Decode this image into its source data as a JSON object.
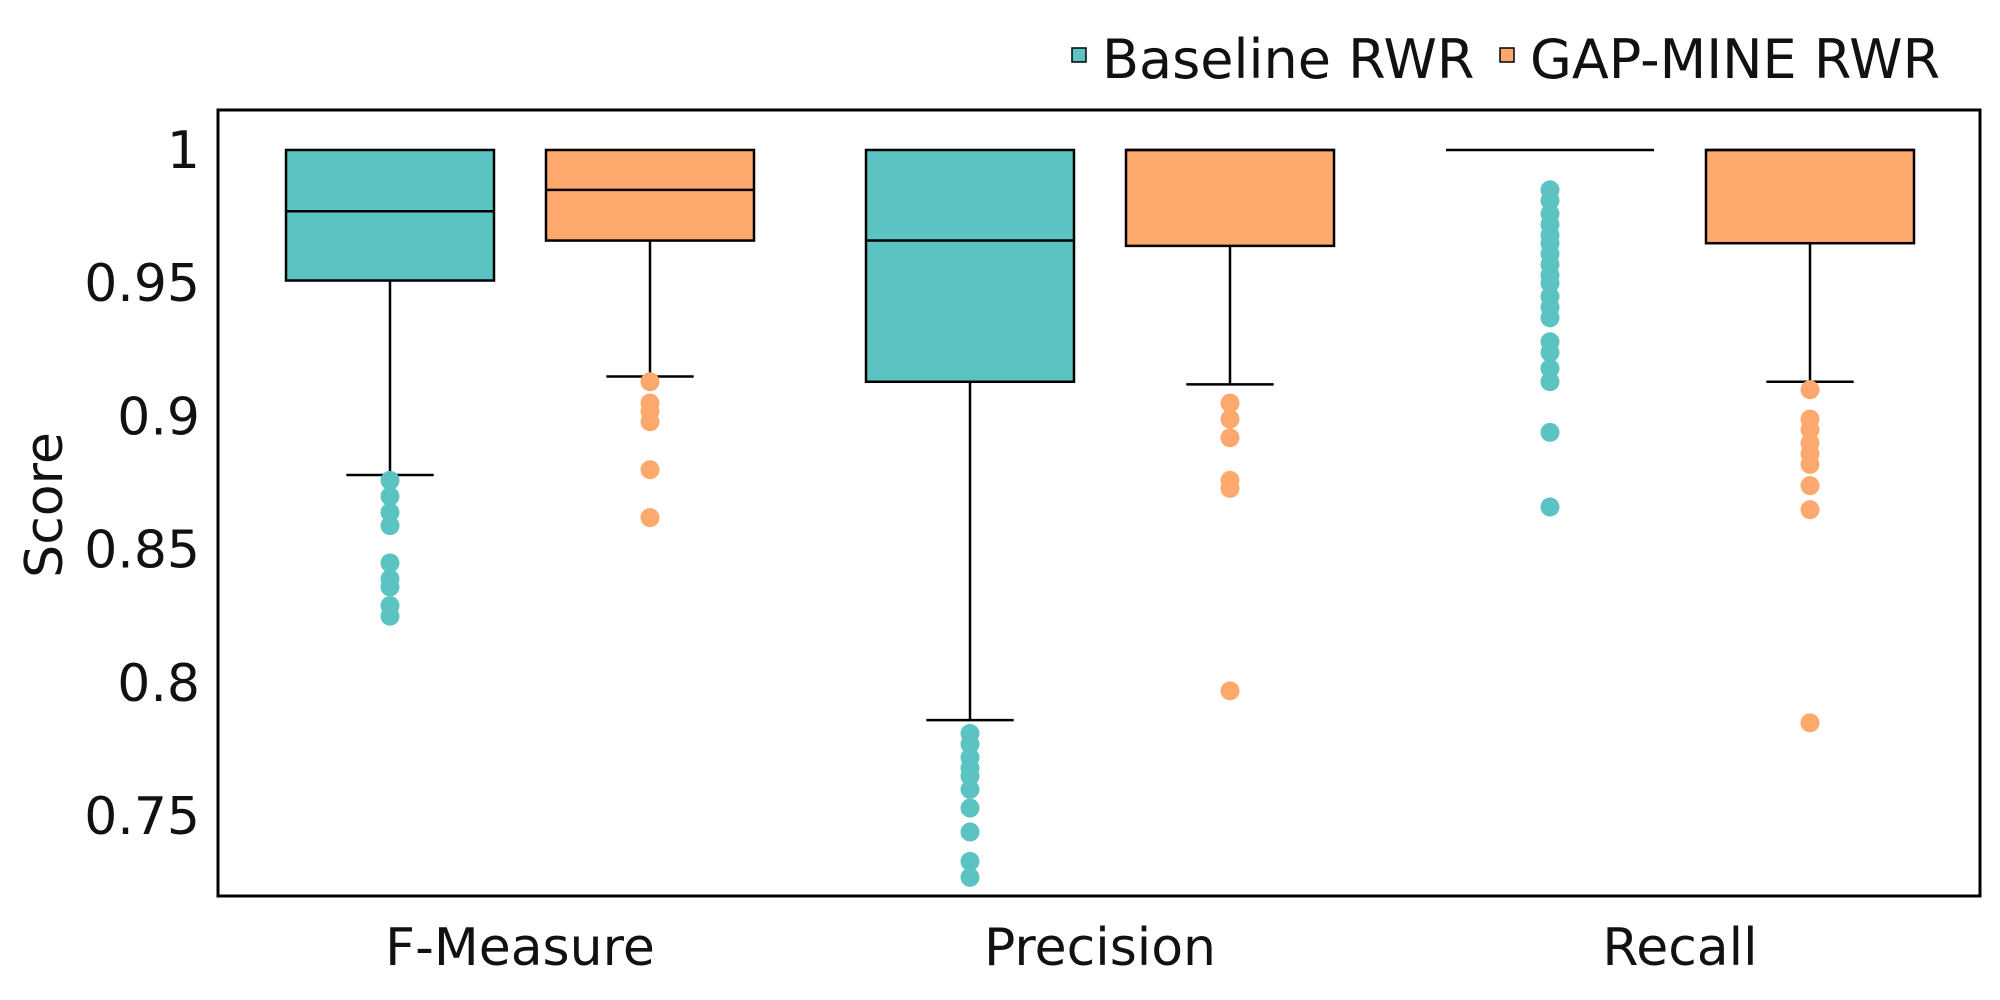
{
  "chart_data": {
    "type": "box",
    "title": "",
    "xlabel": "",
    "ylabel": "Score",
    "ylim": [
      0.72,
      1.015
    ],
    "y_ticks": [
      {
        "value": 1,
        "label": "1"
      },
      {
        "value": 0.95,
        "label": "0.95"
      },
      {
        "value": 0.9,
        "label": "0.9"
      },
      {
        "value": 0.85,
        "label": "0.85"
      },
      {
        "value": 0.8,
        "label": "0.8"
      },
      {
        "value": 0.75,
        "label": "0.75"
      }
    ],
    "categories": [
      "F-Measure",
      "Precision",
      "Recall"
    ],
    "grid": false,
    "legend_position": "top-right",
    "series": [
      {
        "name": "Baseline RWR",
        "color": "#5bc4c2",
        "boxes": [
          {
            "q1": 0.951,
            "median": 0.977,
            "q3": 1.0,
            "whisker_low": 0.878,
            "whisker_high": 1.0,
            "outliers": [
              0.876,
              0.87,
              0.864,
              0.859,
              0.845,
              0.839,
              0.836,
              0.829,
              0.825
            ]
          },
          {
            "q1": 0.913,
            "median": 0.966,
            "q3": 1.0,
            "whisker_low": 0.786,
            "whisker_high": 1.0,
            "outliers": [
              0.781,
              0.777,
              0.772,
              0.768,
              0.765,
              0.76,
              0.753,
              0.744,
              0.733,
              0.727
            ]
          },
          {
            "q1": 1.0,
            "median": 1.0,
            "q3": 1.0,
            "whisker_low": 1.0,
            "whisker_high": 1.0,
            "outliers": [
              0.985,
              0.981,
              0.976,
              0.972,
              0.968,
              0.965,
              0.961,
              0.957,
              0.953,
              0.95,
              0.945,
              0.941,
              0.937,
              0.928,
              0.924,
              0.918,
              0.913,
              0.894,
              0.866
            ]
          }
        ]
      },
      {
        "name": "GAP-MINE RWR",
        "color": "#fda86c",
        "boxes": [
          {
            "q1": 0.966,
            "median": 0.985,
            "q3": 1.0,
            "whisker_low": 0.915,
            "whisker_high": 1.0,
            "outliers": [
              0.913,
              0.905,
              0.902,
              0.898,
              0.88,
              0.862
            ]
          },
          {
            "q1": 0.964,
            "median": 1.0,
            "q3": 1.0,
            "whisker_low": 0.912,
            "whisker_high": 1.0,
            "outliers": [
              0.905,
              0.899,
              0.892,
              0.876,
              0.873,
              0.797
            ]
          },
          {
            "q1": 0.965,
            "median": 1.0,
            "q3": 1.0,
            "whisker_low": 0.913,
            "whisker_high": 1.0,
            "outliers": [
              0.91,
              0.899,
              0.895,
              0.89,
              0.886,
              0.882,
              0.874,
              0.865,
              0.785
            ]
          }
        ]
      }
    ]
  }
}
